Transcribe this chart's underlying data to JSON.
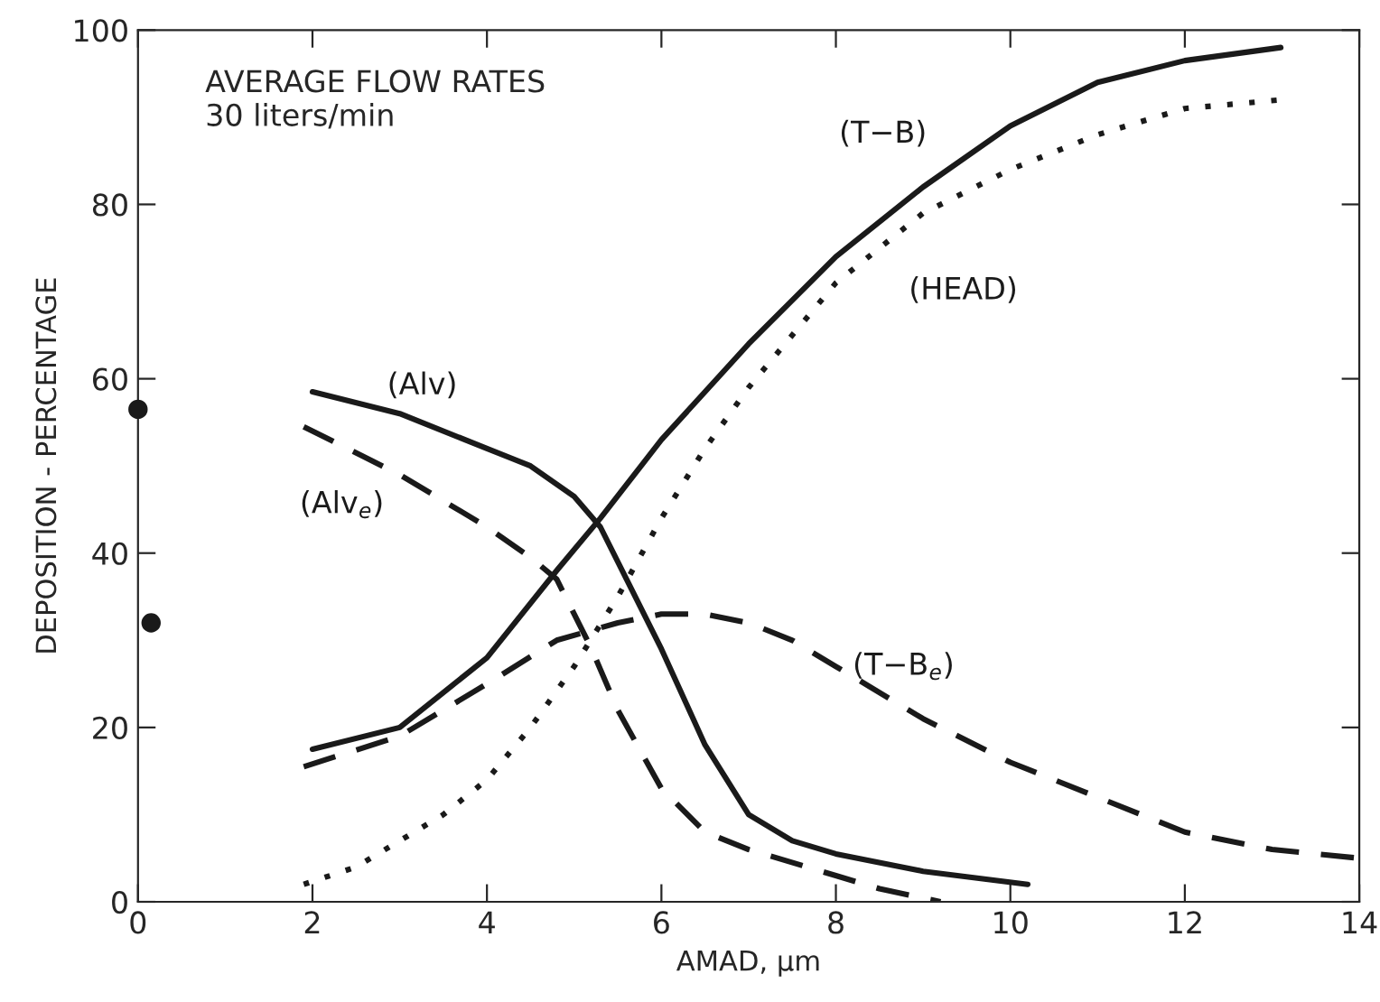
{
  "chart_data": {
    "type": "line",
    "xlabel": "AMAD, μm",
    "ylabel": "DEPOSITION - PERCENTAGE",
    "xlim": [
      0,
      14
    ],
    "xticks": [
      0,
      2,
      4,
      6,
      8,
      10,
      12,
      14
    ],
    "ylim": [
      0,
      100
    ],
    "yticks": [
      0,
      20,
      40,
      60,
      80,
      100
    ],
    "grid": false,
    "legend": false,
    "marker": "none",
    "annotations": [
      "AVERAGE FLOW RATES\n30 liters/min"
    ],
    "series": [
      {
        "name": "(T−B)",
        "color": "#1a1a1a",
        "line_style": "solid",
        "x": [
          2,
          3,
          4,
          4.8,
          5.3,
          6,
          7,
          8,
          9,
          10,
          11,
          12,
          13.1
        ],
        "values": [
          17.5,
          20,
          28,
          38,
          44,
          53,
          64,
          74,
          82,
          89,
          94,
          96.5,
          98
        ]
      },
      {
        "name": "(HEAD)",
        "color": "#1a1a1a",
        "line_style": "dotted",
        "x": [
          1.9,
          2.5,
          3,
          3.5,
          4,
          4.5,
          5,
          5.5,
          6,
          6.5,
          7,
          7.5,
          8,
          9,
          10,
          11,
          12,
          13.1
        ],
        "values": [
          2,
          4,
          7,
          10,
          14,
          20,
          27,
          35,
          44,
          52,
          59,
          65,
          71,
          79,
          84,
          88,
          91,
          92
        ]
      },
      {
        "name": "(Alv)",
        "color": "#1a1a1a",
        "line_style": "solid",
        "x": [
          2,
          3,
          4,
          4.5,
          5,
          5.3,
          5.6,
          6,
          6.5,
          7,
          7.5,
          8,
          9,
          10.2
        ],
        "values": [
          58.5,
          56,
          52,
          50,
          46.5,
          43,
          37,
          29,
          18,
          10,
          7,
          5.5,
          3.5,
          2
        ]
      },
      {
        "name": "(Alv$_{e}$)",
        "color": "#1a1a1a",
        "line_style": "dashed",
        "x": [
          1.9,
          3,
          4,
          4.5,
          4.8,
          5.2,
          5.5,
          6,
          6.5,
          7,
          8,
          8.5,
          9.2
        ],
        "values": [
          54.5,
          49,
          43,
          39.5,
          37,
          29,
          22,
          13,
          8,
          6,
          3,
          1.5,
          0
        ]
      },
      {
        "name": "(T−B$_{e}$)",
        "color": "#1a1a1a",
        "line_style": "dashed",
        "x": [
          1.9,
          3,
          4,
          4.8,
          5.5,
          6,
          6.5,
          7,
          7.5,
          8,
          9,
          10,
          11,
          12,
          13,
          14
        ],
        "values": [
          15.5,
          19,
          25,
          30,
          32,
          33,
          33,
          32,
          30,
          27,
          21,
          16,
          12,
          8,
          6,
          5
        ]
      },
      {
        "type": "scatter",
        "color": "#1a1a1a",
        "marker": "circle",
        "x": [
          0,
          0.15
        ],
        "values": [
          56.5,
          32
        ]
      }
    ]
  }
}
